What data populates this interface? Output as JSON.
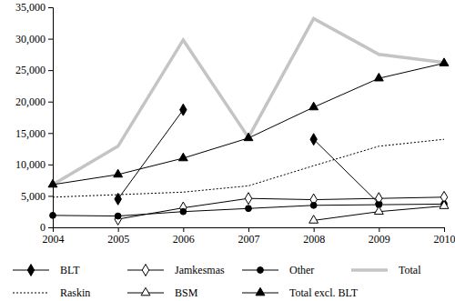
{
  "chart_data": {
    "type": "line",
    "x": [
      2004,
      2005,
      2006,
      2007,
      2008,
      2009,
      2010
    ],
    "xlim": [
      2004,
      2010
    ],
    "xticks": [
      2004,
      2005,
      2006,
      2007,
      2008,
      2009,
      2010
    ],
    "ylim": [
      0,
      35000
    ],
    "yticks": [
      0,
      {
        "value": 5000,
        "label": "5,000"
      },
      {
        "value": 10000,
        "label": "10,000"
      },
      {
        "value": 15000,
        "label": "15,000"
      },
      {
        "value": 20000,
        "label": "20,000"
      },
      {
        "value": 25000,
        "label": "25,000"
      },
      {
        "value": 30000,
        "label": "30,000"
      },
      {
        "value": 35000,
        "label": "35,000"
      }
    ],
    "grid": false,
    "legend": "bottom",
    "series": [
      {
        "name": "BLT",
        "color": "#000000",
        "marker": "diamond",
        "line_style": "solid",
        "values": [
          null,
          4500,
          18700,
          null,
          14000,
          3800,
          null
        ]
      },
      {
        "name": "Jamkesmas",
        "color": "#000000",
        "marker": "diamond-open",
        "line_style": "solid",
        "values": [
          null,
          1300,
          3100,
          4600,
          4400,
          4600,
          4800
        ]
      },
      {
        "name": "Other",
        "color": "#000000",
        "marker": "circle",
        "line_style": "solid",
        "values": [
          1900,
          1800,
          2500,
          3000,
          3500,
          3600,
          3700
        ]
      },
      {
        "name": "Total",
        "color": "#c4c4c4",
        "marker": "none",
        "line_style": "thick",
        "values": [
          6800,
          12900,
          29800,
          14300,
          33200,
          27500,
          26200
        ]
      },
      {
        "name": "Raskin",
        "color": "#000000",
        "marker": "none",
        "line_style": "dotted",
        "values": [
          4800,
          5200,
          5600,
          6600,
          9800,
          12900,
          14000
        ]
      },
      {
        "name": "BSM",
        "color": "#000000",
        "marker": "triangle-open",
        "line_style": "solid",
        "values": [
          null,
          null,
          null,
          null,
          1100,
          2500,
          3400
        ]
      },
      {
        "name": "Total excl. BLT",
        "color": "#000000",
        "marker": "triangle",
        "line_style": "solid",
        "values": [
          6800,
          8400,
          11000,
          14200,
          19100,
          23700,
          26100
        ]
      }
    ]
  }
}
